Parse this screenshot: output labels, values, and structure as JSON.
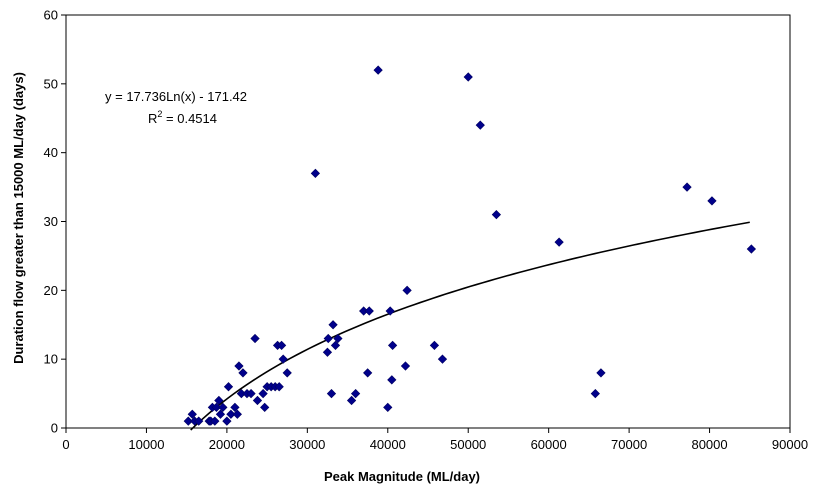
{
  "chart_data": {
    "type": "scatter",
    "title": "",
    "xlabel": "Peak Magnitude (ML/day)",
    "ylabel": "Duration flow greater than 15000 ML/day  (days)",
    "xlim": [
      0,
      90000
    ],
    "ylim": [
      0,
      60
    ],
    "x_ticks": [
      0,
      10000,
      20000,
      30000,
      40000,
      50000,
      60000,
      70000,
      80000,
      90000
    ],
    "y_ticks": [
      0,
      10,
      20,
      30,
      40,
      50,
      60
    ],
    "grid": false,
    "legend": "none",
    "marker_color": "#00008B",
    "trendline_color": "#000000",
    "trendline": {
      "type": "logarithmic",
      "a": 17.736,
      "b": -171.42,
      "x_range": [
        15500,
        85000
      ],
      "equation_label": "y = 17.736Ln(x) - 171.42",
      "r2_prefix": "R",
      "r2_sup": "2",
      "r2_value": " = 0.4514"
    },
    "points": [
      [
        15200,
        1
      ],
      [
        15700,
        2
      ],
      [
        16000,
        1
      ],
      [
        16500,
        1
      ],
      [
        17800,
        1
      ],
      [
        18000,
        1
      ],
      [
        18200,
        3
      ],
      [
        18500,
        1
      ],
      [
        18700,
        3
      ],
      [
        19000,
        4
      ],
      [
        19200,
        2
      ],
      [
        19500,
        3
      ],
      [
        20000,
        1
      ],
      [
        20200,
        6
      ],
      [
        20500,
        2
      ],
      [
        21000,
        3
      ],
      [
        21300,
        2
      ],
      [
        21500,
        9
      ],
      [
        21800,
        5
      ],
      [
        22000,
        8
      ],
      [
        22500,
        5
      ],
      [
        23000,
        5
      ],
      [
        23500,
        13
      ],
      [
        23800,
        4
      ],
      [
        24500,
        5
      ],
      [
        24700,
        3
      ],
      [
        25000,
        6
      ],
      [
        25500,
        6
      ],
      [
        26000,
        6
      ],
      [
        26300,
        12
      ],
      [
        26500,
        6
      ],
      [
        26800,
        12
      ],
      [
        27000,
        10
      ],
      [
        27500,
        8
      ],
      [
        31000,
        37
      ],
      [
        32500,
        11
      ],
      [
        32600,
        13
      ],
      [
        33000,
        5
      ],
      [
        33200,
        15
      ],
      [
        33500,
        12
      ],
      [
        33800,
        13
      ],
      [
        35500,
        4
      ],
      [
        36000,
        5
      ],
      [
        37000,
        17
      ],
      [
        37500,
        8
      ],
      [
        37700,
        17
      ],
      [
        38800,
        52
      ],
      [
        40000,
        3
      ],
      [
        40300,
        17
      ],
      [
        40500,
        7
      ],
      [
        40600,
        12
      ],
      [
        42200,
        9
      ],
      [
        42400,
        20
      ],
      [
        45800,
        12
      ],
      [
        46800,
        10
      ],
      [
        50000,
        51
      ],
      [
        51500,
        44
      ],
      [
        53500,
        31
      ],
      [
        61300,
        27
      ],
      [
        65800,
        5
      ],
      [
        66500,
        8
      ],
      [
        77200,
        35
      ],
      [
        80300,
        33
      ],
      [
        85200,
        26
      ]
    ]
  }
}
